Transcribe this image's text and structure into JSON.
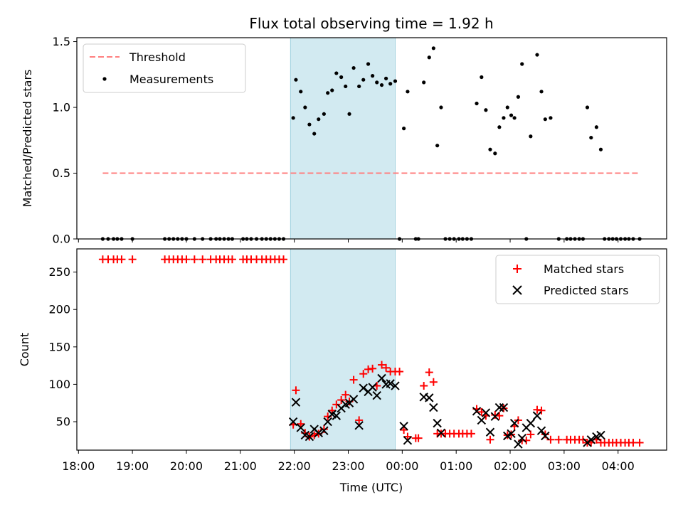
{
  "figure": {
    "title": "Flux total observing time = 1.92 h"
  },
  "chart_data": [
    {
      "type": "scatter",
      "title": "Flux total observing time = 1.92 h",
      "xlabel": "",
      "ylabel": "Matched/Predicted stars",
      "xlim_hours": [
        17.97,
        28.9
      ],
      "ylim": [
        0,
        1.53
      ],
      "yticks": [
        "0.0",
        "0.5",
        "1.0",
        "1.5"
      ],
      "highlight_span_hours": [
        21.93,
        23.87
      ],
      "highlight_color": "#add8e6",
      "legend_position": "upper left",
      "threshold": {
        "name": "Threshold",
        "y": 0.5,
        "x_hours": [
          18.45,
          28.4
        ],
        "color": "#ff7f7f",
        "style": "dashed"
      },
      "series": [
        {
          "name": "Measurements",
          "color": "#000000",
          "marker": "dot",
          "points": [
            [
              18.45,
              0
            ],
            [
              18.55,
              0
            ],
            [
              18.65,
              0
            ],
            [
              18.72,
              0
            ],
            [
              18.8,
              0
            ],
            [
              19.0,
              0
            ],
            [
              19.6,
              0
            ],
            [
              19.68,
              0
            ],
            [
              19.76,
              0
            ],
            [
              19.84,
              0
            ],
            [
              19.92,
              0
            ],
            [
              20.0,
              0
            ],
            [
              20.15,
              0
            ],
            [
              20.3,
              0
            ],
            [
              20.45,
              0
            ],
            [
              20.55,
              0
            ],
            [
              20.62,
              0
            ],
            [
              20.7,
              0
            ],
            [
              20.78,
              0
            ],
            [
              20.85,
              0
            ],
            [
              21.05,
              0
            ],
            [
              21.12,
              0
            ],
            [
              21.2,
              0
            ],
            [
              21.3,
              0
            ],
            [
              21.4,
              0
            ],
            [
              21.48,
              0
            ],
            [
              21.56,
              0
            ],
            [
              21.64,
              0
            ],
            [
              21.72,
              0
            ],
            [
              21.8,
              0
            ],
            [
              21.98,
              0.92
            ],
            [
              22.03,
              1.21
            ],
            [
              22.12,
              1.12
            ],
            [
              22.2,
              1.0
            ],
            [
              22.28,
              0.87
            ],
            [
              22.37,
              0.8
            ],
            [
              22.45,
              0.91
            ],
            [
              22.55,
              0.95
            ],
            [
              22.62,
              1.11
            ],
            [
              22.7,
              1.13
            ],
            [
              22.78,
              1.26
            ],
            [
              22.87,
              1.23
            ],
            [
              22.95,
              1.16
            ],
            [
              23.02,
              0.95
            ],
            [
              23.1,
              1.3
            ],
            [
              23.2,
              1.16
            ],
            [
              23.28,
              1.21
            ],
            [
              23.37,
              1.33
            ],
            [
              23.45,
              1.24
            ],
            [
              23.53,
              1.19
            ],
            [
              23.62,
              1.17
            ],
            [
              23.7,
              1.22
            ],
            [
              23.78,
              1.18
            ],
            [
              23.87,
              1.2
            ],
            [
              23.95,
              0
            ],
            [
              24.03,
              0.84
            ],
            [
              24.1,
              1.12
            ],
            [
              24.25,
              0
            ],
            [
              24.3,
              0
            ],
            [
              24.4,
              1.19
            ],
            [
              24.5,
              1.38
            ],
            [
              24.58,
              1.45
            ],
            [
              24.65,
              0.71
            ],
            [
              24.72,
              1.0
            ],
            [
              24.8,
              0
            ],
            [
              24.88,
              0
            ],
            [
              24.96,
              0
            ],
            [
              25.05,
              0
            ],
            [
              25.12,
              0
            ],
            [
              25.2,
              0
            ],
            [
              25.28,
              0
            ],
            [
              25.38,
              1.03
            ],
            [
              25.47,
              1.23
            ],
            [
              25.55,
              0.98
            ],
            [
              25.63,
              0.68
            ],
            [
              25.72,
              0.65
            ],
            [
              25.8,
              0.85
            ],
            [
              25.88,
              0.92
            ],
            [
              25.95,
              1.0
            ],
            [
              26.02,
              0.94
            ],
            [
              26.08,
              0.92
            ],
            [
              26.15,
              1.08
            ],
            [
              26.22,
              1.33
            ],
            [
              26.3,
              0
            ],
            [
              26.38,
              0.78
            ],
            [
              26.5,
              1.4
            ],
            [
              26.58,
              1.12
            ],
            [
              26.65,
              0.91
            ],
            [
              26.75,
              0.92
            ],
            [
              26.9,
              0
            ],
            [
              27.05,
              0
            ],
            [
              27.12,
              0
            ],
            [
              27.2,
              0
            ],
            [
              27.28,
              0
            ],
            [
              27.35,
              0
            ],
            [
              27.43,
              1.0
            ],
            [
              27.5,
              0.77
            ],
            [
              27.6,
              0.85
            ],
            [
              27.68,
              0.68
            ],
            [
              27.75,
              0
            ],
            [
              27.83,
              0
            ],
            [
              27.9,
              0
            ],
            [
              27.97,
              0
            ],
            [
              28.05,
              0
            ],
            [
              28.13,
              0
            ],
            [
              28.2,
              0
            ],
            [
              28.28,
              0
            ],
            [
              28.4,
              0
            ]
          ]
        }
      ]
    },
    {
      "type": "scatter",
      "xlabel": "Time (UTC)",
      "ylabel": "Count",
      "xlim_hours": [
        17.97,
        28.9
      ],
      "ylim": [
        12,
        281
      ],
      "yticks": [
        "50",
        "100",
        "150",
        "200",
        "250"
      ],
      "xticks": [
        "18:00",
        "19:00",
        "20:00",
        "21:00",
        "22:00",
        "23:00",
        "00:00",
        "01:00",
        "02:00",
        "03:00",
        "04:00"
      ],
      "highlight_span_hours": [
        21.93,
        23.87
      ],
      "highlight_color": "#add8e6",
      "legend_position": "upper right",
      "series": [
        {
          "name": "Matched stars",
          "color": "#ff0000",
          "marker": "plus",
          "points": [
            [
              18.45,
              267
            ],
            [
              18.55,
              267
            ],
            [
              18.65,
              267
            ],
            [
              18.72,
              267
            ],
            [
              18.8,
              267
            ],
            [
              19.0,
              267
            ],
            [
              19.6,
              267
            ],
            [
              19.68,
              267
            ],
            [
              19.76,
              267
            ],
            [
              19.84,
              267
            ],
            [
              19.92,
              267
            ],
            [
              20.0,
              267
            ],
            [
              20.15,
              267
            ],
            [
              20.3,
              267
            ],
            [
              20.45,
              267
            ],
            [
              20.55,
              267
            ],
            [
              20.62,
              267
            ],
            [
              20.7,
              267
            ],
            [
              20.78,
              267
            ],
            [
              20.85,
              267
            ],
            [
              21.05,
              267
            ],
            [
              21.12,
              267
            ],
            [
              21.2,
              267
            ],
            [
              21.3,
              267
            ],
            [
              21.4,
              267
            ],
            [
              21.48,
              267
            ],
            [
              21.56,
              267
            ],
            [
              21.64,
              267
            ],
            [
              21.72,
              267
            ],
            [
              21.8,
              267
            ],
            [
              21.98,
              46
            ],
            [
              22.03,
              92
            ],
            [
              22.12,
              47
            ],
            [
              22.2,
              35
            ],
            [
              22.28,
              30
            ],
            [
              22.37,
              32
            ],
            [
              22.45,
              34
            ],
            [
              22.55,
              40
            ],
            [
              22.62,
              57
            ],
            [
              22.7,
              65
            ],
            [
              22.78,
              73
            ],
            [
              22.87,
              79
            ],
            [
              22.95,
              86
            ],
            [
              23.02,
              77
            ],
            [
              23.1,
              106
            ],
            [
              23.2,
              52
            ],
            [
              23.28,
              114
            ],
            [
              23.37,
              120
            ],
            [
              23.45,
              121
            ],
            [
              23.53,
              98
            ],
            [
              23.62,
              126
            ],
            [
              23.7,
              122
            ],
            [
              23.78,
              117
            ],
            [
              23.87,
              117
            ],
            [
              23.95,
              117
            ],
            [
              24.03,
              39
            ],
            [
              24.1,
              30
            ],
            [
              24.25,
              28
            ],
            [
              24.3,
              28
            ],
            [
              24.4,
              98
            ],
            [
              24.5,
              116
            ],
            [
              24.58,
              103
            ],
            [
              24.65,
              34
            ],
            [
              24.72,
              34
            ],
            [
              24.8,
              34
            ],
            [
              24.88,
              34
            ],
            [
              24.96,
              34
            ],
            [
              25.05,
              34
            ],
            [
              25.12,
              34
            ],
            [
              25.2,
              34
            ],
            [
              25.28,
              34
            ],
            [
              25.38,
              67
            ],
            [
              25.47,
              63
            ],
            [
              25.55,
              58
            ],
            [
              25.63,
              26
            ],
            [
              25.72,
              59
            ],
            [
              25.8,
              58
            ],
            [
              25.88,
              68
            ],
            [
              25.95,
              32
            ],
            [
              26.02,
              33
            ],
            [
              26.08,
              44
            ],
            [
              26.15,
              52
            ],
            [
              26.22,
              25
            ],
            [
              26.3,
              25
            ],
            [
              26.38,
              33
            ],
            [
              26.5,
              66
            ],
            [
              26.58,
              65
            ],
            [
              26.65,
              33
            ],
            [
              26.75,
              26
            ],
            [
              26.9,
              26
            ],
            [
              27.05,
              26
            ],
            [
              27.12,
              26
            ],
            [
              27.2,
              26
            ],
            [
              27.28,
              26
            ],
            [
              27.35,
              26
            ],
            [
              27.43,
              22
            ],
            [
              27.5,
              22
            ],
            [
              27.6,
              26
            ],
            [
              27.68,
              22
            ],
            [
              27.75,
              22
            ],
            [
              27.83,
              22
            ],
            [
              27.9,
              22
            ],
            [
              27.97,
              22
            ],
            [
              28.05,
              22
            ],
            [
              28.13,
              22
            ],
            [
              28.2,
              22
            ],
            [
              28.28,
              22
            ],
            [
              28.4,
              22
            ]
          ]
        },
        {
          "name": "Predicted stars",
          "color": "#000000",
          "marker": "x",
          "points": [
            [
              21.98,
              50
            ],
            [
              22.03,
              76
            ],
            [
              22.12,
              42
            ],
            [
              22.2,
              32
            ],
            [
              22.28,
              30
            ],
            [
              22.37,
              40
            ],
            [
              22.45,
              35
            ],
            [
              22.55,
              38
            ],
            [
              22.62,
              50
            ],
            [
              22.7,
              60
            ],
            [
              22.78,
              58
            ],
            [
              22.87,
              68
            ],
            [
              22.95,
              73
            ],
            [
              23.02,
              75
            ],
            [
              23.1,
              80
            ],
            [
              23.2,
              45
            ],
            [
              23.28,
              95
            ],
            [
              23.37,
              90
            ],
            [
              23.45,
              96
            ],
            [
              23.53,
              85
            ],
            [
              23.62,
              108
            ],
            [
              23.7,
              100
            ],
            [
              23.78,
              101
            ],
            [
              23.87,
              98
            ],
            [
              24.03,
              44
            ],
            [
              24.1,
              25
            ],
            [
              24.4,
              83
            ],
            [
              24.5,
              82
            ],
            [
              24.58,
              69
            ],
            [
              24.65,
              48
            ],
            [
              24.72,
              35
            ],
            [
              25.38,
              64
            ],
            [
              25.47,
              52
            ],
            [
              25.55,
              62
            ],
            [
              25.63,
              36
            ],
            [
              25.72,
              57
            ],
            [
              25.8,
              69
            ],
            [
              25.88,
              69
            ],
            [
              25.95,
              31
            ],
            [
              26.02,
              34
            ],
            [
              26.08,
              48
            ],
            [
              26.15,
              20
            ],
            [
              26.22,
              28
            ],
            [
              26.3,
              42
            ],
            [
              26.38,
              48
            ],
            [
              26.5,
              58
            ],
            [
              26.58,
              38
            ],
            [
              26.65,
              31
            ],
            [
              27.43,
              22
            ],
            [
              27.5,
              26
            ],
            [
              27.6,
              30
            ],
            [
              27.68,
              32
            ]
          ]
        }
      ]
    }
  ]
}
